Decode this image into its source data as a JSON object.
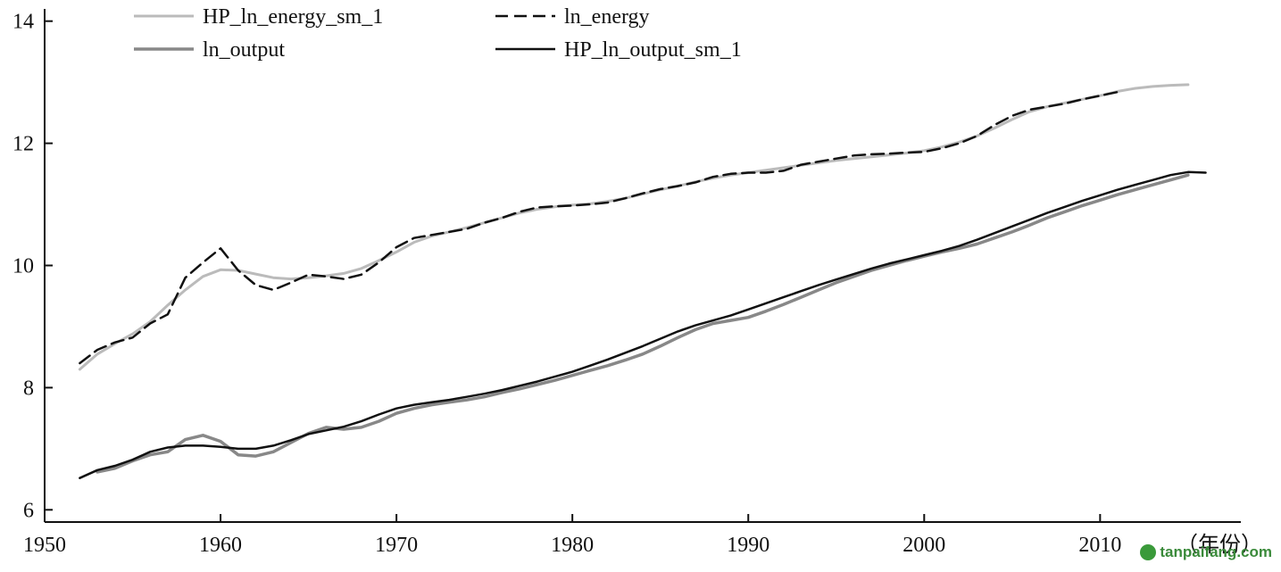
{
  "chart_data": {
    "type": "line",
    "title": "",
    "xlabel": "（年份）",
    "ylabel": "",
    "xlim": [
      1950,
      2018
    ],
    "ylim": [
      5.8,
      14.2
    ],
    "grid": false,
    "legend_position": "top",
    "x_ticks": [
      "1950",
      "1960",
      "1970",
      "1980",
      "1990",
      "2000",
      "2010"
    ],
    "y_ticks": [
      "6",
      "8",
      "10",
      "12",
      "14"
    ],
    "x_tick_values": [
      1950,
      1960,
      1970,
      1980,
      1990,
      2000,
      2010
    ],
    "y_tick_values": [
      6,
      8,
      10,
      12,
      14
    ],
    "series": [
      {
        "name": "HP_ln_energy_sm_1",
        "color": "#bbbbbb",
        "dash": "solid",
        "x": [
          1952,
          1953,
          1954,
          1955,
          1956,
          1957,
          1958,
          1959,
          1960,
          1961,
          1962,
          1963,
          1964,
          1965,
          1966,
          1967,
          1968,
          1969,
          1970,
          1971,
          1972,
          1973,
          1974,
          1975,
          1976,
          1977,
          1978,
          1979,
          1980,
          1981,
          1982,
          1983,
          1984,
          1985,
          1986,
          1987,
          1988,
          1989,
          1990,
          1991,
          1992,
          1993,
          1994,
          1995,
          1996,
          1997,
          1998,
          1999,
          2000,
          2001,
          2002,
          2003,
          2004,
          2005,
          2006,
          2007,
          2008,
          2009,
          2010,
          2011,
          2012,
          2013,
          2014,
          2015
        ],
        "y": [
          8.3,
          8.55,
          8.72,
          8.88,
          9.08,
          9.35,
          9.6,
          9.82,
          9.93,
          9.92,
          9.86,
          9.8,
          9.78,
          9.8,
          9.83,
          9.87,
          9.95,
          10.08,
          10.22,
          10.38,
          10.48,
          10.55,
          10.62,
          10.7,
          10.78,
          10.86,
          10.92,
          10.96,
          10.99,
          11.01,
          11.05,
          11.1,
          11.17,
          11.24,
          11.3,
          11.37,
          11.43,
          11.48,
          11.52,
          11.56,
          11.6,
          11.64,
          11.68,
          11.72,
          11.75,
          11.78,
          11.81,
          11.84,
          11.88,
          11.94,
          12.02,
          12.12,
          12.25,
          12.39,
          12.52,
          12.6,
          12.66,
          12.72,
          12.78,
          12.85,
          12.9,
          12.93,
          12.95,
          12.96
        ]
      },
      {
        "name": "ln_energy",
        "color": "#111111",
        "dash": "dashed",
        "x": [
          1952,
          1953,
          1954,
          1955,
          1956,
          1957,
          1958,
          1959,
          1960,
          1961,
          1962,
          1963,
          1964,
          1965,
          1966,
          1967,
          1968,
          1969,
          1970,
          1971,
          1972,
          1973,
          1974,
          1975,
          1976,
          1977,
          1978,
          1979,
          1980,
          1981,
          1982,
          1983,
          1984,
          1985,
          1986,
          1987,
          1988,
          1989,
          1990,
          1991,
          1992,
          1993,
          1994,
          1995,
          1996,
          1997,
          1998,
          1999,
          2000,
          2001,
          2002,
          2003,
          2004,
          2005,
          2006,
          2007,
          2008,
          2009,
          2010,
          2011
        ],
        "y": [
          8.4,
          8.62,
          8.74,
          8.82,
          9.05,
          9.2,
          9.8,
          10.05,
          10.28,
          9.92,
          9.68,
          9.6,
          9.72,
          9.85,
          9.82,
          9.78,
          9.85,
          10.05,
          10.3,
          10.45,
          10.5,
          10.55,
          10.6,
          10.7,
          10.78,
          10.88,
          10.95,
          10.97,
          10.98,
          11.0,
          11.03,
          11.1,
          11.18,
          11.25,
          11.3,
          11.36,
          11.45,
          11.5,
          11.52,
          11.52,
          11.55,
          11.65,
          11.7,
          11.75,
          11.8,
          11.82,
          11.83,
          11.85,
          11.86,
          11.92,
          12.0,
          12.12,
          12.3,
          12.45,
          12.55,
          12.6,
          12.65,
          12.72,
          12.78,
          12.84
        ]
      },
      {
        "name": "ln_output",
        "color": "#888888",
        "dash": "solid",
        "x": [
          1953,
          1954,
          1955,
          1956,
          1957,
          1958,
          1959,
          1960,
          1961,
          1962,
          1963,
          1964,
          1965,
          1966,
          1967,
          1968,
          1969,
          1970,
          1971,
          1972,
          1973,
          1974,
          1975,
          1976,
          1977,
          1978,
          1979,
          1980,
          1981,
          1982,
          1983,
          1984,
          1985,
          1986,
          1987,
          1988,
          1989,
          1990,
          1991,
          1992,
          1993,
          1994,
          1995,
          1996,
          1997,
          1998,
          1999,
          2000,
          2001,
          2002,
          2003,
          2004,
          2005,
          2006,
          2007,
          2008,
          2009,
          2010,
          2011,
          2012,
          2013,
          2014,
          2015
        ],
        "y": [
          6.62,
          6.68,
          6.8,
          6.9,
          6.95,
          7.15,
          7.22,
          7.12,
          6.9,
          6.88,
          6.95,
          7.1,
          7.25,
          7.35,
          7.32,
          7.35,
          7.45,
          7.58,
          7.66,
          7.72,
          7.76,
          7.8,
          7.85,
          7.92,
          7.98,
          8.05,
          8.12,
          8.2,
          8.28,
          8.36,
          8.45,
          8.55,
          8.68,
          8.82,
          8.95,
          9.05,
          9.1,
          9.15,
          9.25,
          9.36,
          9.48,
          9.6,
          9.72,
          9.82,
          9.92,
          10.0,
          10.08,
          10.15,
          10.22,
          10.28,
          10.35,
          10.45,
          10.55,
          10.66,
          10.78,
          10.88,
          10.98,
          11.07,
          11.16,
          11.24,
          11.32,
          11.4,
          11.48
        ]
      },
      {
        "name": "HP_ln_output_sm_1",
        "color": "#111111",
        "dash": "solid",
        "x": [
          1952,
          1953,
          1954,
          1955,
          1956,
          1957,
          1958,
          1959,
          1960,
          1961,
          1962,
          1963,
          1964,
          1965,
          1966,
          1967,
          1968,
          1969,
          1970,
          1971,
          1972,
          1973,
          1974,
          1975,
          1976,
          1977,
          1978,
          1979,
          1980,
          1981,
          1982,
          1983,
          1984,
          1985,
          1986,
          1987,
          1988,
          1989,
          1990,
          1991,
          1992,
          1993,
          1994,
          1995,
          1996,
          1997,
          1998,
          1999,
          2000,
          2001,
          2002,
          2003,
          2004,
          2005,
          2006,
          2007,
          2008,
          2009,
          2010,
          2011,
          2012,
          2013,
          2014,
          2015,
          2016
        ],
        "y": [
          6.52,
          6.65,
          6.72,
          6.82,
          6.95,
          7.02,
          7.05,
          7.05,
          7.03,
          7.0,
          7.0,
          7.05,
          7.14,
          7.24,
          7.3,
          7.36,
          7.45,
          7.56,
          7.66,
          7.72,
          7.76,
          7.8,
          7.85,
          7.9,
          7.96,
          8.03,
          8.1,
          8.18,
          8.26,
          8.36,
          8.46,
          8.57,
          8.68,
          8.8,
          8.92,
          9.02,
          9.1,
          9.18,
          9.28,
          9.38,
          9.48,
          9.58,
          9.68,
          9.77,
          9.86,
          9.95,
          10.03,
          10.1,
          10.17,
          10.24,
          10.32,
          10.42,
          10.53,
          10.64,
          10.75,
          10.86,
          10.96,
          11.06,
          11.15,
          11.24,
          11.32,
          11.4,
          11.48,
          11.53,
          11.52
        ]
      }
    ]
  },
  "watermark": {
    "text": "tanpaifang.com",
    "logo_icon": "leaf-circle-icon"
  }
}
